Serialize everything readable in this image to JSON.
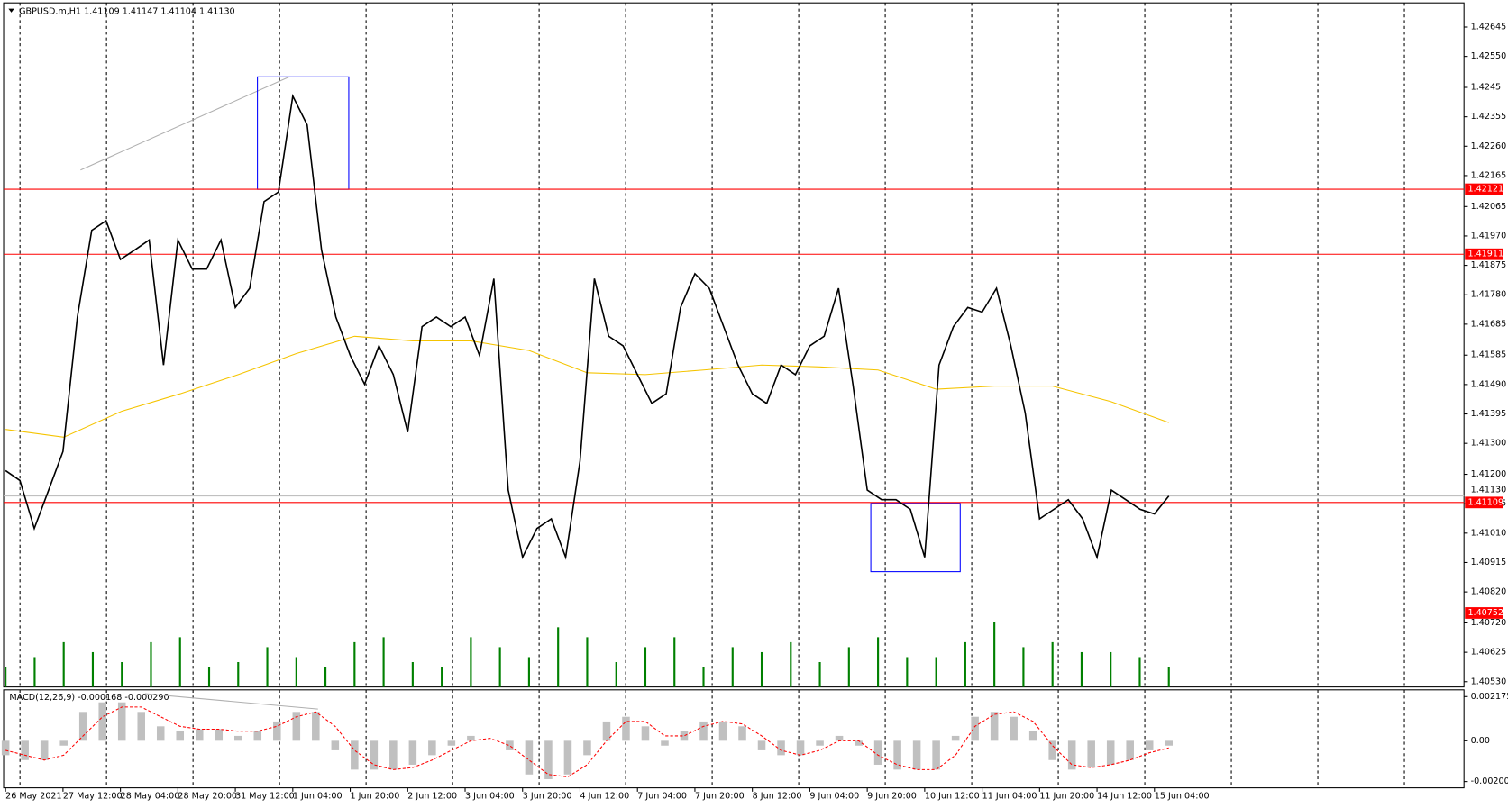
{
  "chart_data": [
    {
      "type": "line",
      "title": "GBPUSD.m,H1  1.41109 1.41147 1.41104 1.41130",
      "x": [
        "26 May 2021",
        null,
        null,
        null,
        "27 May 12:00",
        null,
        null,
        null,
        "28 May 04:00",
        null,
        null,
        null,
        "28 May 20:00",
        null,
        null,
        null,
        "31 May 12:00",
        null,
        null,
        null,
        "1 Jun 04:00",
        null,
        null,
        null,
        "1 Jun 20:00",
        null,
        null,
        null,
        "2 Jun 12:00",
        null,
        null,
        null,
        "3 Jun 04:00",
        null,
        null,
        null,
        "3 Jun 20:00",
        null,
        null,
        null,
        "4 Jun 12:00",
        null,
        null,
        null,
        "7 Jun 04:00",
        null,
        null,
        null,
        "7 Jun 20:00",
        null,
        null,
        null,
        "8 Jun 12:00",
        null,
        null,
        null,
        "9 Jun 04:00",
        null,
        null,
        null,
        "9 Jun 20:00",
        null,
        null,
        null,
        "10 Jun 12:00",
        null,
        null,
        null,
        "11 Jun 04:00",
        null,
        null,
        null,
        "11 Jun 20:00",
        null,
        null,
        null,
        "14 Jun 12:00",
        null,
        null,
        null,
        "15 Jun 04:00",
        null
      ],
      "series": [
        {
          "color": "#000000",
          "values": [
            1.41212,
            1.4118,
            1.41025,
            1.41149,
            1.41274,
            1.41708,
            1.41988,
            1.42019,
            1.41894,
            1.41925,
            1.41957,
            1.41553,
            1.41957,
            1.41863,
            1.41863,
            1.41957,
            1.41739,
            1.41801,
            1.42081,
            1.42112,
            1.42422,
            1.42329,
            1.41925,
            1.41708,
            1.41584,
            1.41491,
            1.41615,
            1.41522,
            1.41336,
            1.41677,
            1.41708,
            1.41677,
            1.41708,
            1.41584,
            1.41832,
            1.41149,
            1.40932,
            1.41025,
            1.41056,
            1.40932,
            1.41243,
            1.41832,
            1.41646,
            1.41615,
            1.41522,
            1.41429,
            1.4146,
            1.41739,
            1.41848,
            1.41801,
            1.41677,
            1.41553,
            1.4146,
            1.41429,
            1.41553,
            1.41522,
            1.41615,
            1.41646,
            1.41801,
            1.41491,
            1.41149,
            1.41118,
            1.41118,
            1.41087,
            1.40932,
            1.41553,
            1.41677,
            1.41739,
            1.41724,
            1.41801,
            1.41615,
            1.41398,
            1.41056,
            1.41087,
            1.41118,
            1.41056,
            1.40932,
            1.41149,
            1.41118,
            1.41087,
            1.41072,
            1.4113
          ]
        }
      ],
      "ma": {
        "color": "#f5c400",
        "values": [
          1.41345,
          1.4132,
          1.41404,
          1.4146,
          1.41522,
          1.4159,
          1.41646,
          1.41631,
          1.41631,
          1.416,
          1.41528,
          1.41522,
          1.41537,
          1.41553,
          1.41547,
          1.41537,
          1.41475,
          1.41485,
          1.41485,
          1.41435,
          1.41367
        ]
      },
      "volume": {
        "color": "#008000",
        "values": [
          20,
          30,
          45,
          35,
          25,
          45,
          50,
          20,
          25,
          40,
          30,
          20,
          45,
          50,
          25,
          20,
          50,
          40,
          30,
          60,
          50,
          25,
          40,
          50,
          20,
          40,
          35,
          45,
          25,
          40,
          50,
          30,
          30,
          45,
          65,
          40,
          45,
          35,
          35,
          30,
          20
        ]
      },
      "vlim": [
        0,
        110
      ],
      "ylim": [
        1.40513,
        1.42723
      ],
      "yticks": [
        1.42645,
        {
          "value": 1.4255,
          "label": "1.42550"
        },
        1.4245,
        1.42355,
        {
          "value": 1.4226,
          "label": "1.42260"
        },
        1.42165,
        1.42065,
        {
          "value": 1.4197,
          "label": "1.41970"
        },
        1.41875,
        {
          "value": 1.4178,
          "label": "1.41780"
        },
        1.41685,
        1.41585,
        {
          "value": 1.4149,
          "label": "1.41490"
        },
        1.41395,
        {
          "value": 1.413,
          "label": "1.41300"
        },
        {
          "value": 1.412,
          "label": "1.41200"
        },
        1.41105,
        {
          "value": 1.4101,
          "label": "1.41010"
        },
        1.40915,
        {
          "value": 1.4082,
          "label": "1.40820"
        },
        {
          "value": 1.4072,
          "label": "1.40720"
        },
        1.40625,
        {
          "value": 1.4053,
          "label": "1.40530"
        }
      ],
      "levels": [
        {
          "value": 1.42121,
          "color": "#ff0000"
        },
        {
          "value": 1.41911,
          "color": "#ff0000"
        },
        {
          "value": 1.41109,
          "color": "#ff0000"
        },
        {
          "value": 1.40752,
          "color": "#ff0000"
        }
      ],
      "bid": {
        "value": 1.4113,
        "label": "1.41130"
      }
    },
    {
      "type": "bar",
      "title": "MACD(12,26,9) -0.000168 -0.000290",
      "series": [
        {
          "color": "#c0c0c0",
          "values": [
            -0.00071,
            -0.00095,
            -0.00095,
            -0.00024,
            0.00142,
            0.00189,
            0.00189,
            0.00142,
            0.00071,
            0.00047,
            0.00057,
            0.00057,
            0.00024,
            0.00047,
            0.00095,
            0.00142,
            0.00142,
            -0.00047,
            -0.00142,
            -0.00142,
            -0.00142,
            -0.00118,
            -0.00071,
            -0.00024,
            0.00024,
            0,
            -0.00047,
            -0.00166,
            -0.00189,
            -0.00166,
            -0.00071,
            0.00095,
            0.00118,
            0.00071,
            -0.00024,
            0.00047,
            0.00095,
            0.00095,
            0.00071,
            -0.00047,
            -0.00071,
            -0.00071,
            -0.00024,
            0.00024,
            -0.00024,
            -0.00118,
            -0.00142,
            -0.00142,
            -0.00142,
            0.00024,
            0.00118,
            0.00142,
            0.00118,
            0.00047,
            -0.00095,
            -0.00142,
            -0.00132,
            -0.00118,
            -0.00095,
            -0.00047,
            -0.00024
          ]
        },
        {
          "color": "#ff0000",
          "values": [
            -0.00047,
            -0.00071,
            -0.00095,
            -0.00071,
            0.00024,
            0.00118,
            0.00166,
            0.00166,
            0.00118,
            0.00071,
            0.00057,
            0.00057,
            0.00047,
            0.00047,
            0.00071,
            0.00118,
            0.00142,
            0.00071,
            -0.00047,
            -0.00118,
            -0.00142,
            -0.00132,
            -0.00095,
            -0.00047,
            0,
            0.00012,
            -0.00024,
            -0.00095,
            -0.00166,
            -0.00178,
            -0.00118,
            0,
            0.00095,
            0.00095,
            0.00024,
            0.00024,
            0.00071,
            0.00095,
            0.00083,
            0.00024,
            -0.00047,
            -0.00071,
            -0.00047,
            0,
            0,
            -0.00071,
            -0.00118,
            -0.00142,
            -0.00142,
            -0.00071,
            0.00071,
            0.0013,
            0.00142,
            0.00095,
            -0.00024,
            -0.00118,
            -0.00132,
            -0.00118,
            -0.00095,
            -0.00059,
            -0.00035
          ]
        }
      ],
      "ylim": [
        -0.002317,
        0.002506
      ],
      "yticks": [
        0.002175,
        {
          "value": 0,
          "label": "0.00"
        },
        -0.002008
      ]
    }
  ]
}
